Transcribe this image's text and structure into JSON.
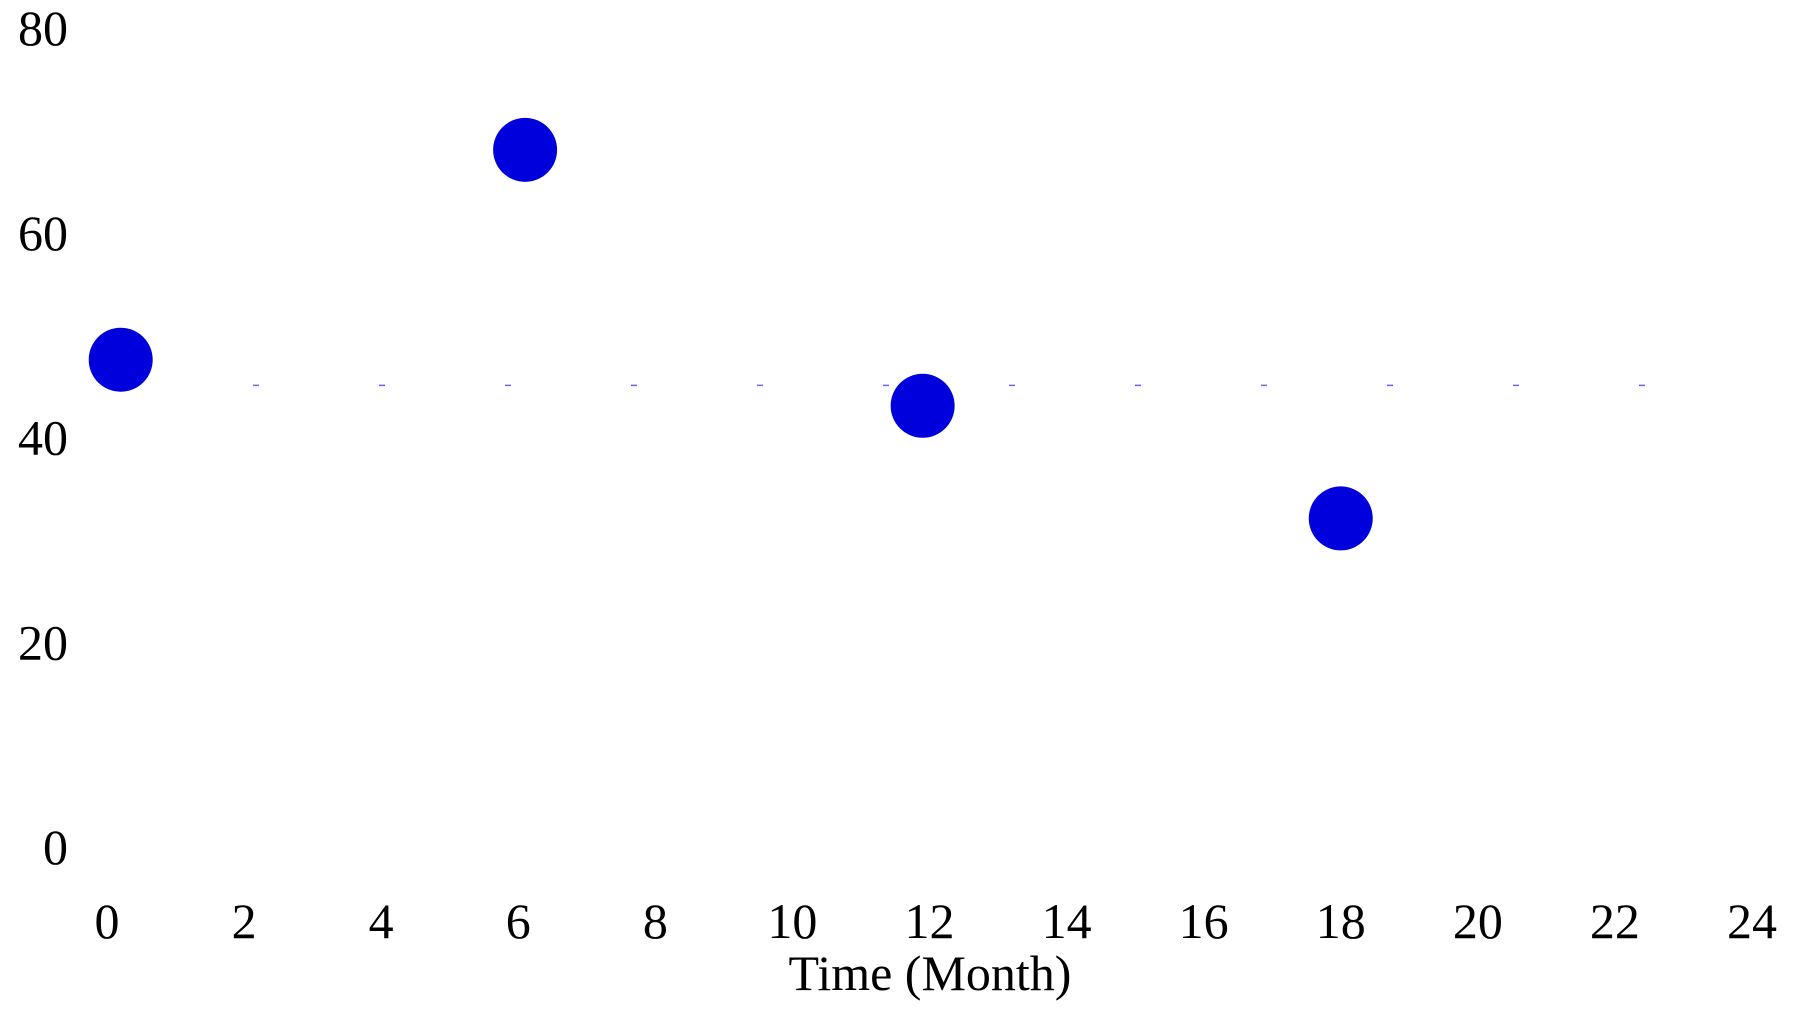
{
  "chart_data": {
    "type": "scatter",
    "title": "",
    "xlabel": "Time (Month)",
    "ylabel": "",
    "xlim": [
      0,
      24
    ],
    "ylim": [
      0,
      80
    ],
    "x_ticks": [
      0,
      2,
      4,
      6,
      8,
      10,
      12,
      14,
      16,
      18,
      20,
      22,
      24
    ],
    "y_ticks": [
      0,
      20,
      40,
      60,
      80
    ],
    "grid": false,
    "reference_line": {
      "y": 45,
      "style": "sparse dashed"
    },
    "series": [
      {
        "color": "#0000dd",
        "points": [
          {
            "x": 0.2,
            "y": 47.5
          },
          {
            "x": 6.1,
            "y": 68
          },
          {
            "x": 11.9,
            "y": 43
          },
          {
            "x": 18,
            "y": 32
          }
        ]
      }
    ]
  }
}
